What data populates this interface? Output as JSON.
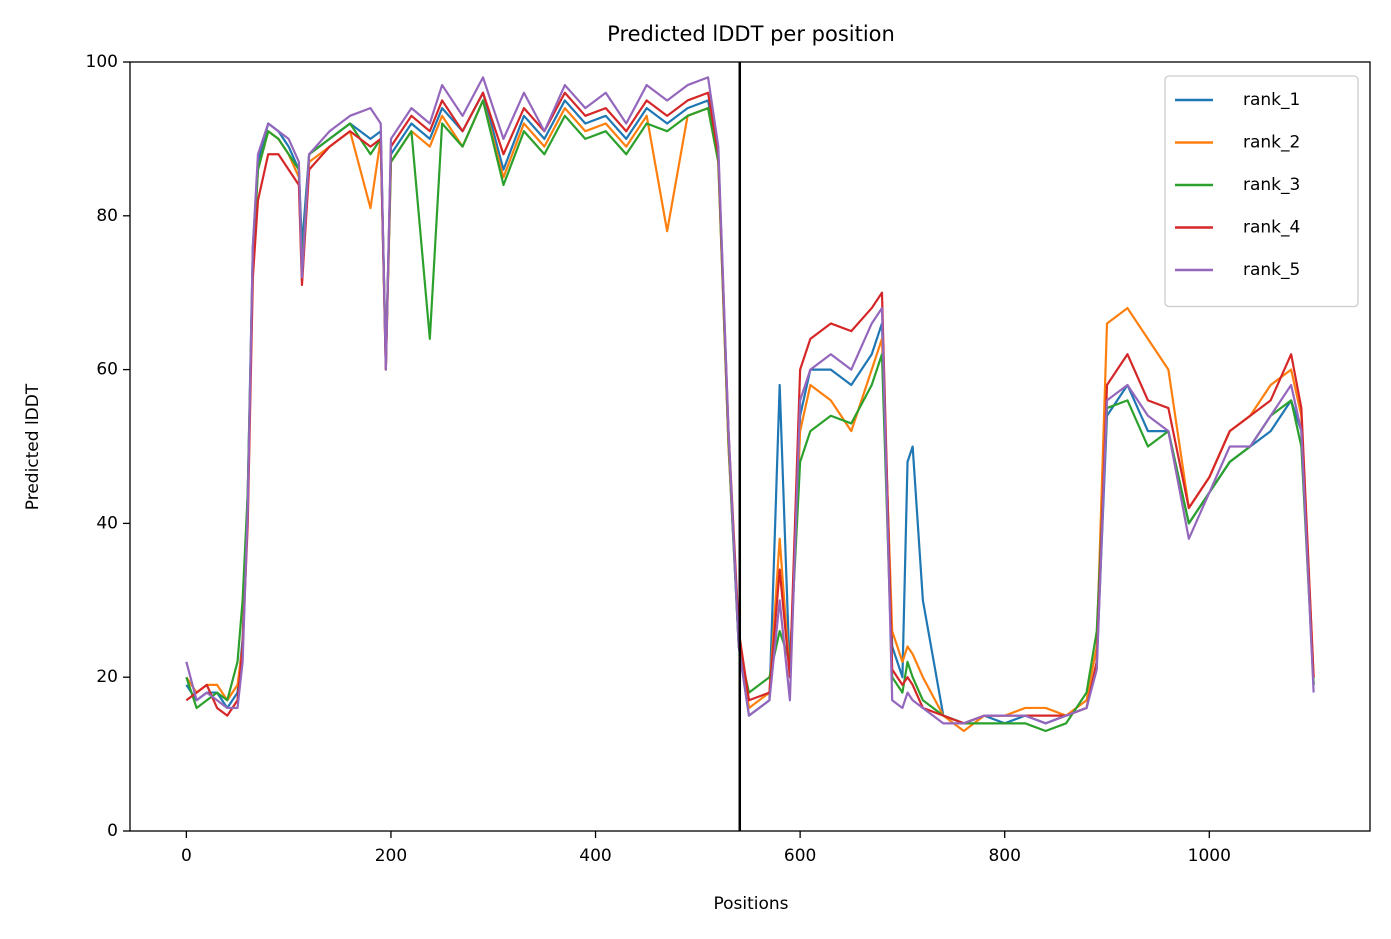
{
  "chart_data": {
    "type": "line",
    "title": "Predicted lDDT per position",
    "x_label": "Positions",
    "y_label": "Predicted lDDT",
    "x": [
      0,
      10,
      20,
      30,
      40,
      50,
      55,
      60,
      65,
      70,
      80,
      90,
      100,
      110,
      113,
      120,
      140,
      160,
      180,
      190,
      195,
      200,
      220,
      238,
      250,
      270,
      290,
      310,
      330,
      350,
      370,
      390,
      410,
      430,
      450,
      470,
      490,
      510,
      520,
      530,
      540,
      550,
      570,
      580,
      590,
      600,
      610,
      630,
      650,
      670,
      680,
      690,
      700,
      705,
      710,
      720,
      740,
      760,
      780,
      800,
      820,
      840,
      860,
      880,
      890,
      900,
      920,
      940,
      960,
      980,
      1000,
      1020,
      1040,
      1060,
      1080,
      1090,
      1102
    ],
    "series": [
      {
        "name": "rank_1",
        "color": "#1f77b4",
        "values": [
          19,
          17,
          18,
          18,
          16,
          18,
          25,
          44,
          76,
          87,
          92,
          91,
          89,
          86,
          76,
          88,
          90,
          92,
          90,
          91,
          61,
          88,
          92,
          90,
          94,
          91,
          96,
          86,
          93,
          90,
          95,
          92,
          93,
          90,
          94,
          92,
          94,
          95,
          88,
          50,
          24,
          15,
          17,
          58,
          20,
          54,
          60,
          60,
          58,
          62,
          66,
          24,
          20,
          48,
          50,
          30,
          15,
          14,
          15,
          14,
          15,
          14,
          15,
          16,
          22,
          54,
          58,
          52,
          52,
          40,
          44,
          48,
          50,
          52,
          56,
          52,
          19
        ]
      },
      {
        "name": "rank_2",
        "color": "#ff7f0e",
        "values": [
          20,
          18,
          19,
          19,
          17,
          19,
          24,
          42,
          75,
          86,
          91,
          90,
          88,
          85,
          72,
          87,
          89,
          91,
          81,
          90,
          60,
          87,
          91,
          89,
          93,
          89,
          95,
          85,
          92,
          89,
          94,
          91,
          92,
          89,
          93,
          78,
          93,
          94,
          87,
          50,
          25,
          16,
          18,
          38,
          20,
          52,
          58,
          56,
          52,
          60,
          64,
          26,
          22,
          24,
          23,
          20,
          15,
          13,
          15,
          15,
          16,
          16,
          15,
          17,
          24,
          66,
          68,
          64,
          60,
          42,
          46,
          52,
          54,
          58,
          60,
          54,
          20
        ]
      },
      {
        "name": "rank_3",
        "color": "#2ca02c",
        "values": [
          20,
          16,
          17,
          18,
          17,
          22,
          30,
          44,
          74,
          86,
          91,
          90,
          88,
          86,
          73,
          88,
          90,
          92,
          88,
          90,
          61,
          87,
          91,
          64,
          92,
          89,
          95,
          84,
          91,
          88,
          93,
          90,
          91,
          88,
          92,
          91,
          93,
          94,
          87,
          51,
          24,
          18,
          20,
          26,
          22,
          48,
          52,
          54,
          53,
          58,
          62,
          20,
          18,
          22,
          20,
          17,
          15,
          14,
          14,
          14,
          14,
          13,
          14,
          18,
          26,
          55,
          56,
          50,
          52,
          40,
          44,
          48,
          50,
          54,
          56,
          50,
          19
        ]
      },
      {
        "name": "rank_4",
        "color": "#d62728",
        "values": [
          17,
          18,
          19,
          16,
          15,
          17,
          24,
          40,
          72,
          82,
          88,
          88,
          86,
          84,
          71,
          86,
          89,
          91,
          89,
          90,
          60,
          89,
          93,
          91,
          95,
          91,
          96,
          88,
          94,
          91,
          96,
          93,
          94,
          91,
          95,
          93,
          95,
          96,
          88,
          52,
          26,
          17,
          18,
          34,
          20,
          60,
          64,
          66,
          65,
          68,
          70,
          21,
          19,
          20,
          19,
          16,
          15,
          14,
          15,
          15,
          15,
          15,
          15,
          16,
          22,
          58,
          62,
          56,
          55,
          42,
          46,
          52,
          54,
          56,
          62,
          55,
          20
        ]
      },
      {
        "name": "rank_5",
        "color": "#9467bd",
        "values": [
          22,
          17,
          18,
          17,
          16,
          16,
          22,
          42,
          76,
          88,
          92,
          91,
          90,
          87,
          72,
          88,
          91,
          93,
          94,
          92,
          60,
          90,
          94,
          92,
          97,
          93,
          98,
          90,
          96,
          91,
          97,
          94,
          96,
          92,
          97,
          95,
          97,
          98,
          89,
          52,
          24,
          15,
          17,
          30,
          17,
          56,
          60,
          62,
          60,
          66,
          68,
          17,
          16,
          18,
          17,
          16,
          14,
          14,
          15,
          15,
          15,
          14,
          15,
          16,
          21,
          56,
          58,
          54,
          52,
          38,
          44,
          50,
          50,
          54,
          58,
          52,
          18
        ]
      }
    ],
    "vlines": [
      541
    ],
    "xlim": [
      -55.1,
      1157.1
    ],
    "ylim": [
      0,
      100
    ],
    "xticks": [
      0,
      200,
      400,
      600,
      800,
      1000
    ],
    "yticks": [
      0,
      20,
      40,
      60,
      80,
      100
    ],
    "legend": "upper right",
    "grid": false
  }
}
